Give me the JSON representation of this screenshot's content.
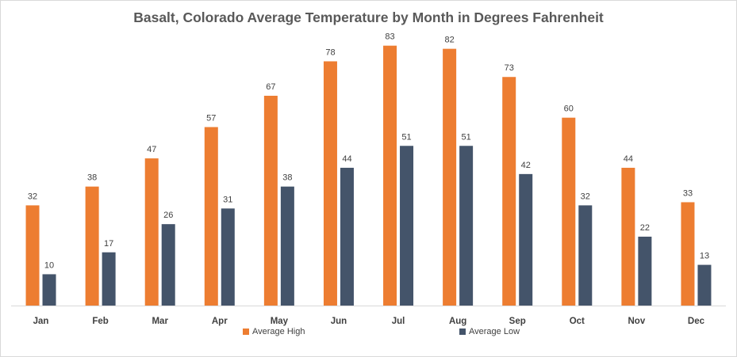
{
  "chart_data": {
    "type": "bar",
    "title": "Basalt, Colorado Average Temperature by Month in Degrees Fahrenheit",
    "categories": [
      "Jan",
      "Feb",
      "Mar",
      "Apr",
      "May",
      "Jun",
      "Jul",
      "Aug",
      "Sep",
      "Oct",
      "Nov",
      "Dec"
    ],
    "series": [
      {
        "name": "Average High",
        "color": "#ED7D31",
        "values": [
          32,
          38,
          47,
          57,
          67,
          78,
          83,
          82,
          73,
          60,
          44,
          33
        ]
      },
      {
        "name": "Average Low",
        "color": "#44546A",
        "values": [
          10,
          17,
          26,
          31,
          38,
          44,
          51,
          51,
          42,
          32,
          22,
          13
        ]
      }
    ],
    "ylim": [
      0,
      90
    ],
    "grid": false,
    "legend_position": "bottom"
  }
}
